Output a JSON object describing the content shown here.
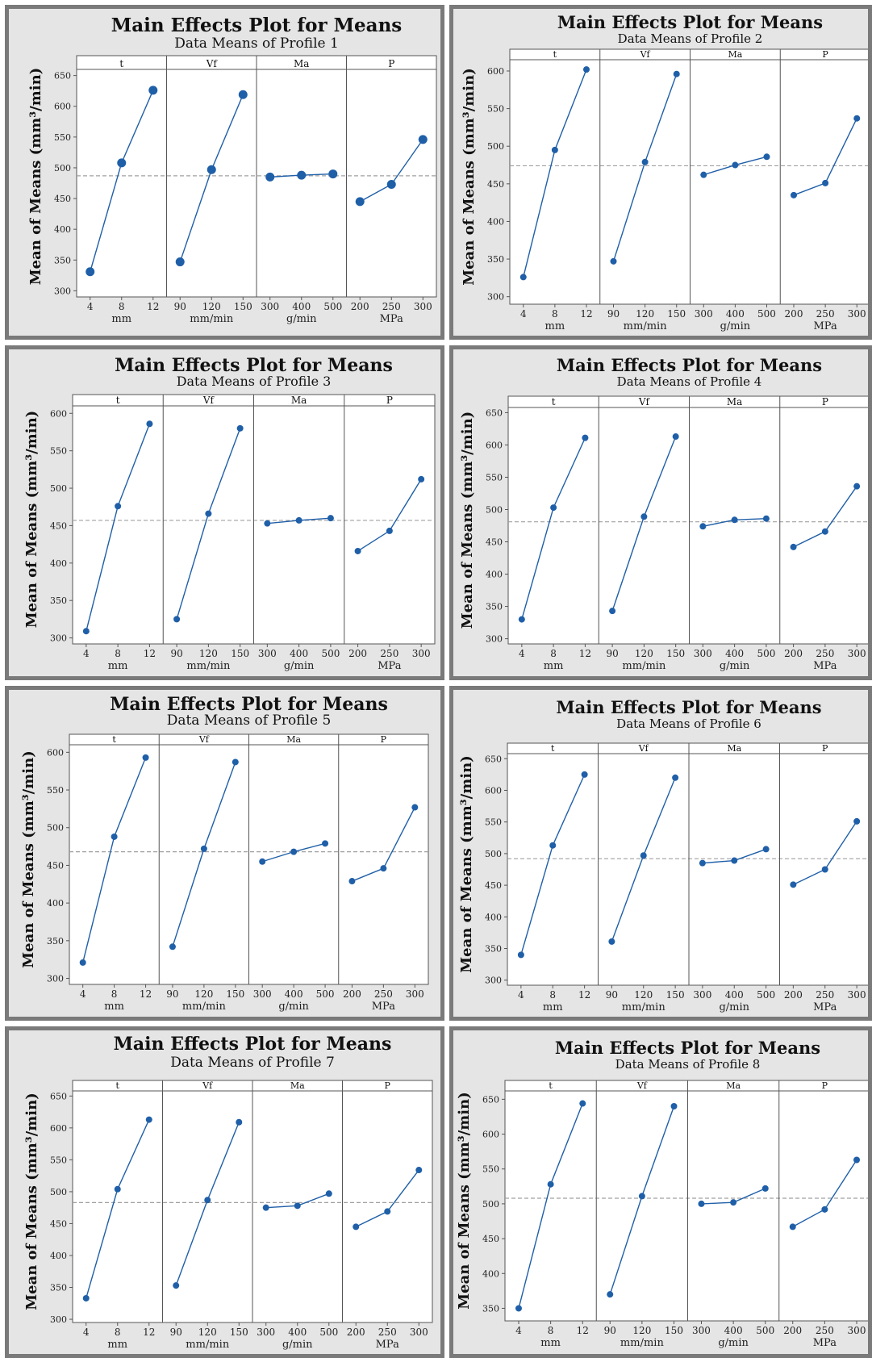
{
  "colors": {
    "series": "#1f5fa8",
    "frame": "#7a7a7a",
    "background": "#e5e5e5",
    "reference": "#a0a0a0"
  },
  "chart_data": [
    {
      "type": "line",
      "title": "Main Effects Plot for Means",
      "subtitle": "Data Means of Profile 1",
      "ylabel": "Mean of Means (mm³/min)",
      "ylim": [
        290,
        660
      ],
      "yticks": [
        300,
        350,
        400,
        450,
        500,
        550,
        600,
        650
      ],
      "reference_mean": 487,
      "factors": [
        {
          "name": "t",
          "unit": "mm",
          "levels": [
            "4",
            "8",
            "12"
          ],
          "values": [
            331,
            508,
            626
          ]
        },
        {
          "name": "Vf",
          "unit": "mm/min",
          "levels": [
            "90",
            "120",
            "150"
          ],
          "values": [
            347,
            497,
            619
          ]
        },
        {
          "name": "Ma",
          "unit": "g/min",
          "levels": [
            "300",
            "400",
            "500"
          ],
          "values": [
            485,
            488,
            490
          ]
        },
        {
          "name": "P",
          "unit": "MPa",
          "levels": [
            "200",
            "250",
            "300"
          ],
          "values": [
            445,
            473,
            546
          ]
        }
      ]
    },
    {
      "type": "line",
      "title": "Main Effects Plot for Means",
      "subtitle": "Data Means of Profile 2",
      "ylabel": "Mean of Means (mm³/min)",
      "ylim": [
        290,
        615
      ],
      "yticks": [
        300,
        350,
        400,
        450,
        500,
        550,
        600
      ],
      "reference_mean": 474,
      "factors": [
        {
          "name": "t",
          "unit": "mm",
          "levels": [
            "4",
            "8",
            "12"
          ],
          "values": [
            326,
            495,
            602
          ]
        },
        {
          "name": "Vf",
          "unit": "mm/min",
          "levels": [
            "90",
            "120",
            "150"
          ],
          "values": [
            347,
            479,
            596
          ]
        },
        {
          "name": "Ma",
          "unit": "g/min",
          "levels": [
            "300",
            "400",
            "500"
          ],
          "values": [
            462,
            475,
            486
          ]
        },
        {
          "name": "P",
          "unit": "MPa",
          "levels": [
            "200",
            "250",
            "300"
          ],
          "values": [
            435,
            451,
            537
          ]
        }
      ]
    },
    {
      "type": "line",
      "title": "Main Effects Plot for Means",
      "subtitle": "Data Means of Profile 3",
      "ylabel": "Mean of Means (mm³/min)",
      "ylim": [
        292,
        610
      ],
      "yticks": [
        300,
        350,
        400,
        450,
        500,
        550,
        600
      ],
      "reference_mean": 457,
      "factors": [
        {
          "name": "t",
          "unit": "mm",
          "levels": [
            "4",
            "8",
            "12"
          ],
          "values": [
            309,
            476,
            586
          ]
        },
        {
          "name": "Vf",
          "unit": "mm/min",
          "levels": [
            "90",
            "120",
            "150"
          ],
          "values": [
            325,
            466,
            580
          ]
        },
        {
          "name": "Ma",
          "unit": "g/min",
          "levels": [
            "300",
            "400",
            "500"
          ],
          "values": [
            453,
            457,
            460
          ]
        },
        {
          "name": "P",
          "unit": "MPa",
          "levels": [
            "200",
            "250",
            "300"
          ],
          "values": [
            416,
            443,
            512
          ]
        }
      ]
    },
    {
      "type": "line",
      "title": "Main Effects Plot for Means",
      "subtitle": "Data Means of Profile 4",
      "ylabel": "Mean of Means (mm³/min)",
      "ylim": [
        292,
        658
      ],
      "yticks": [
        300,
        350,
        400,
        450,
        500,
        550,
        600,
        650
      ],
      "reference_mean": 481,
      "factors": [
        {
          "name": "t",
          "unit": "mm",
          "levels": [
            "4",
            "8",
            "12"
          ],
          "values": [
            330,
            503,
            611
          ]
        },
        {
          "name": "Vf",
          "unit": "mm/min",
          "levels": [
            "90",
            "120",
            "150"
          ],
          "values": [
            343,
            489,
            613
          ]
        },
        {
          "name": "Ma",
          "unit": "g/min",
          "levels": [
            "300",
            "400",
            "500"
          ],
          "values": [
            474,
            484,
            486
          ]
        },
        {
          "name": "P",
          "unit": "MPa",
          "levels": [
            "200",
            "250",
            "300"
          ],
          "values": [
            442,
            466,
            536
          ]
        }
      ]
    },
    {
      "type": "line",
      "title": "Main Effects Plot for Means",
      "subtitle": "Data Means of Profile 5",
      "ylabel": "Mean of Means (mm³/min)",
      "ylim": [
        292,
        610
      ],
      "yticks": [
        300,
        350,
        400,
        450,
        500,
        550,
        600
      ],
      "reference_mean": 468,
      "factors": [
        {
          "name": "t",
          "unit": "mm",
          "levels": [
            "4",
            "8",
            "12"
          ],
          "values": [
            321,
            488,
            593
          ]
        },
        {
          "name": "Vf",
          "unit": "mm/min",
          "levels": [
            "90",
            "120",
            "150"
          ],
          "values": [
            342,
            472,
            587
          ]
        },
        {
          "name": "Ma",
          "unit": "g/min",
          "levels": [
            "300",
            "400",
            "500"
          ],
          "values": [
            455,
            468,
            479
          ]
        },
        {
          "name": "P",
          "unit": "MPa",
          "levels": [
            "200",
            "250",
            "300"
          ],
          "values": [
            429,
            446,
            527
          ]
        }
      ]
    },
    {
      "type": "line",
      "title": "Main Effects Plot for Means",
      "subtitle": "Data Means of Profile 6",
      "ylabel": "Mean of Means (mm³/min)",
      "ylim": [
        292,
        658
      ],
      "yticks": [
        300,
        350,
        400,
        450,
        500,
        550,
        600,
        650
      ],
      "reference_mean": 492,
      "factors": [
        {
          "name": "t",
          "unit": "mm",
          "levels": [
            "4",
            "8",
            "12"
          ],
          "values": [
            340,
            513,
            625
          ]
        },
        {
          "name": "Vf",
          "unit": "mm/min",
          "levels": [
            "90",
            "120",
            "150"
          ],
          "values": [
            361,
            497,
            620
          ]
        },
        {
          "name": "Ma",
          "unit": "g/min",
          "levels": [
            "300",
            "400",
            "500"
          ],
          "values": [
            485,
            489,
            507
          ]
        },
        {
          "name": "P",
          "unit": "MPa",
          "levels": [
            "200",
            "250",
            "300"
          ],
          "values": [
            451,
            475,
            551
          ]
        }
      ]
    },
    {
      "type": "line",
      "title": "Main Effects Plot for Means",
      "subtitle": "Data Means of Profile 7",
      "ylabel": "Mean of Means (mm³/min)",
      "ylim": [
        295,
        658
      ],
      "yticks": [
        300,
        350,
        400,
        450,
        500,
        550,
        600,
        650
      ],
      "reference_mean": 483,
      "factors": [
        {
          "name": "t",
          "unit": "mm",
          "levels": [
            "4",
            "8",
            "12"
          ],
          "values": [
            333,
            504,
            613
          ]
        },
        {
          "name": "Vf",
          "unit": "mm/min",
          "levels": [
            "90",
            "120",
            "150"
          ],
          "values": [
            353,
            487,
            609
          ]
        },
        {
          "name": "Ma",
          "unit": "g/min",
          "levels": [
            "300",
            "400",
            "500"
          ],
          "values": [
            475,
            478,
            497
          ]
        },
        {
          "name": "P",
          "unit": "MPa",
          "levels": [
            "200",
            "250",
            "300"
          ],
          "values": [
            445,
            469,
            534
          ]
        }
      ]
    },
    {
      "type": "line",
      "title": "Main Effects Plot for Means",
      "subtitle": "Data Means of Profile 8",
      "ylabel": "Mean of Means (mm³/min)",
      "ylim": [
        332,
        662
      ],
      "yticks": [
        350,
        400,
        450,
        500,
        550,
        600,
        650
      ],
      "reference_mean": 508,
      "factors": [
        {
          "name": "t",
          "unit": "mm",
          "levels": [
            "4",
            "8",
            "12"
          ],
          "values": [
            350,
            528,
            644
          ]
        },
        {
          "name": "Vf",
          "unit": "mm/min",
          "levels": [
            "90",
            "120",
            "150"
          ],
          "values": [
            370,
            511,
            640
          ]
        },
        {
          "name": "Ma",
          "unit": "g/min",
          "levels": [
            "300",
            "400",
            "500"
          ],
          "values": [
            500,
            502,
            522
          ]
        },
        {
          "name": "P",
          "unit": "MPa",
          "levels": [
            "200",
            "250",
            "300"
          ],
          "values": [
            467,
            492,
            563
          ]
        }
      ]
    }
  ]
}
